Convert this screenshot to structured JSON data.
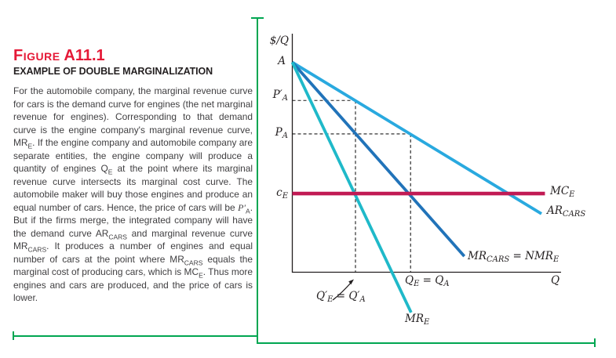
{
  "figure": {
    "label_word": "Figure",
    "label_number": "A11.1",
    "subtitle": "EXAMPLE OF DOUBLE MARGINALIZATION",
    "description_segments": [
      {
        "text": "For the automobile company, the marginal revenue curve for cars is the demand curve for engines (the net marginal revenue for engines). Corresponding to that demand curve is the engine company's marginal revenue curve, MR",
        "sub": false
      },
      {
        "text": "E",
        "sub": true
      },
      {
        "text": ". If the engine company and automobile company are separate entities, the engine company will produce a quantity of engines Q",
        "sub": false
      },
      {
        "text": "E",
        "sub": true
      },
      {
        "text": " at the point where its marginal revenue curve intersects its marginal cost curve. The automobile maker will buy those engines and produce an equal number of cars. Hence, the price of cars will be ",
        "sub": false
      },
      {
        "text": "P′",
        "sub": false,
        "italic": true
      },
      {
        "text": "A",
        "sub": true
      },
      {
        "text": ". But if the firms merge, the integrated company will have the demand curve AR",
        "sub": false
      },
      {
        "text": "CARS",
        "sub": true
      },
      {
        "text": " and marginal revenue curve MR",
        "sub": false
      },
      {
        "text": "CARS",
        "sub": true
      },
      {
        "text": ". It produces a number of engines and equal number of cars at the point where MR",
        "sub": false
      },
      {
        "text": "CARS",
        "sub": true
      },
      {
        "text": " equals the marginal cost of producing cars, which is MC",
        "sub": false
      },
      {
        "text": "E",
        "sub": true
      },
      {
        "text": ". Thus more engines and cars are produced, and the price of cars is lower.",
        "sub": false
      }
    ]
  },
  "colors": {
    "figure_red": "#E51937",
    "rule_green": "#00A651",
    "axis_black": "#231F20",
    "body_text": "#3F3E40",
    "ar_cars_blue": "#29A9DF",
    "mr_cars_blue": "#2173B9",
    "mr_e_teal": "#1FB9C9",
    "mc_e_crimson": "#C11A54"
  },
  "chart_labels": {
    "y_axis_title": "$/Q",
    "intercept": "A",
    "pa_prime": {
      "base": "P′",
      "sub": "A"
    },
    "pa": {
      "base": "P",
      "sub": "A"
    },
    "ce": {
      "base": "c",
      "sub": "E"
    },
    "mce": {
      "base": "MC",
      "sub": "E"
    },
    "ar_cars": {
      "base": "AR",
      "sub": "CARS"
    },
    "mr_cars_nmr": {
      "b1": "MR",
      "s1": "CARS",
      "mid": " = NMR",
      "s2": "E"
    },
    "qe_qa": {
      "b1": "Q",
      "s1": "E",
      "mid": " = Q",
      "s2": "A"
    },
    "qe_qa_prime": {
      "b1": "Q′",
      "s1": "E",
      "mid": " = Q′",
      "s2": "A"
    },
    "mre": {
      "base": "MR",
      "sub": "E"
    },
    "x_axis_title": "Q"
  },
  "chart_data": {
    "type": "line",
    "title": "",
    "xlabel": "Q",
    "ylabel": "$/Q",
    "xlim": [
      0,
      100
    ],
    "ylim": [
      0,
      100
    ],
    "grid": false,
    "legend_position": "inline-labels",
    "key_values": {
      "A_intercept_y": 88,
      "P_A_prime": 72,
      "P_A": 58,
      "c_E": 33,
      "Q_E_prime_equals_Q_A_prime": 23.5,
      "Q_E_equals_Q_A": 44
    },
    "series": [
      {
        "name": "AR_CARS",
        "color": "#29A9DF",
        "points": [
          [
            0,
            88
          ],
          [
            92.7,
            24.5
          ]
        ]
      },
      {
        "name": "MR_CARS = NMR_E",
        "color": "#2173B9",
        "points": [
          [
            0,
            88
          ],
          [
            64,
            6.7
          ]
        ]
      },
      {
        "name": "MR_E",
        "color": "#1FB9C9",
        "points": [
          [
            0,
            88
          ],
          [
            44.2,
            -16.9
          ]
        ]
      },
      {
        "name": "MC_E",
        "color": "#C11A54",
        "points": [
          [
            0,
            33
          ],
          [
            94,
            33
          ]
        ]
      }
    ],
    "guides": [
      {
        "name": "P_A_prime horizontal",
        "points": [
          [
            0,
            72
          ],
          [
            23.5,
            72
          ]
        ]
      },
      {
        "name": "Q_E_prime vertical",
        "points": [
          [
            23.5,
            72
          ],
          [
            23.5,
            0
          ]
        ]
      },
      {
        "name": "P_A horizontal",
        "points": [
          [
            0,
            58
          ],
          [
            44,
            58
          ]
        ]
      },
      {
        "name": "Q_E vertical",
        "points": [
          [
            44,
            58
          ],
          [
            44,
            0
          ]
        ]
      }
    ],
    "annotations": [
      {
        "text": "A",
        "x": 0,
        "y": 88
      },
      {
        "text": "P′A",
        "x": 0,
        "y": 72
      },
      {
        "text": "PA",
        "x": 0,
        "y": 58
      },
      {
        "text": "cE",
        "x": 0,
        "y": 33
      },
      {
        "text": "Q′E = Q′A",
        "x": 23.5,
        "y": 0
      },
      {
        "text": "QE = QA",
        "x": 44,
        "y": 0
      },
      {
        "text": "MCE",
        "x": 94,
        "y": 33
      },
      {
        "text": "ARCARS",
        "x": 92.7,
        "y": 24.5
      },
      {
        "text": "MRCARS = NMRE",
        "x": 64,
        "y": 6.7
      },
      {
        "text": "MRE",
        "x": 44.2,
        "y": -16.9
      }
    ]
  }
}
